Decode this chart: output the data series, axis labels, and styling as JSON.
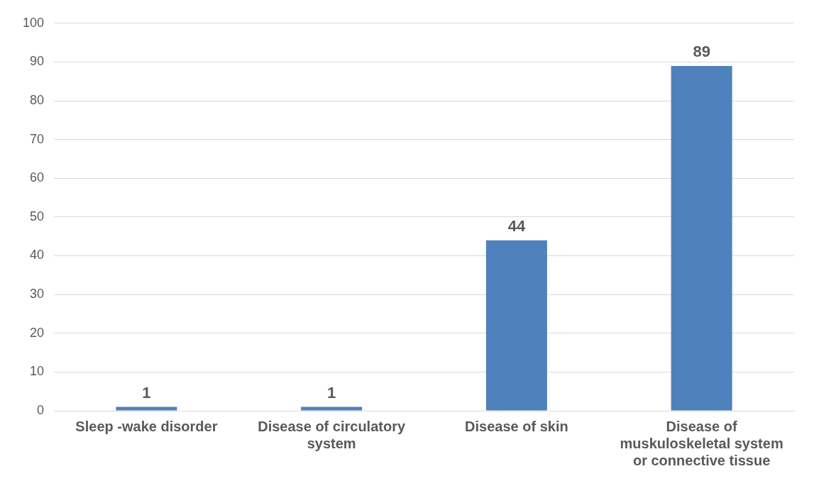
{
  "chart_data": {
    "type": "bar",
    "categories": [
      "Sleep -wake disorder",
      "Disease of circulatory system",
      "Disease of skin",
      "Disease of muskuloskeletal system or connective tissue"
    ],
    "values": [
      1,
      1,
      44,
      89
    ],
    "color": "#4f81bd",
    "ylim": [
      0,
      100
    ],
    "yticks": [
      0,
      10,
      20,
      30,
      40,
      50,
      60,
      70,
      80,
      90,
      100
    ],
    "grid": "y",
    "data_labels": true,
    "legend": false
  }
}
